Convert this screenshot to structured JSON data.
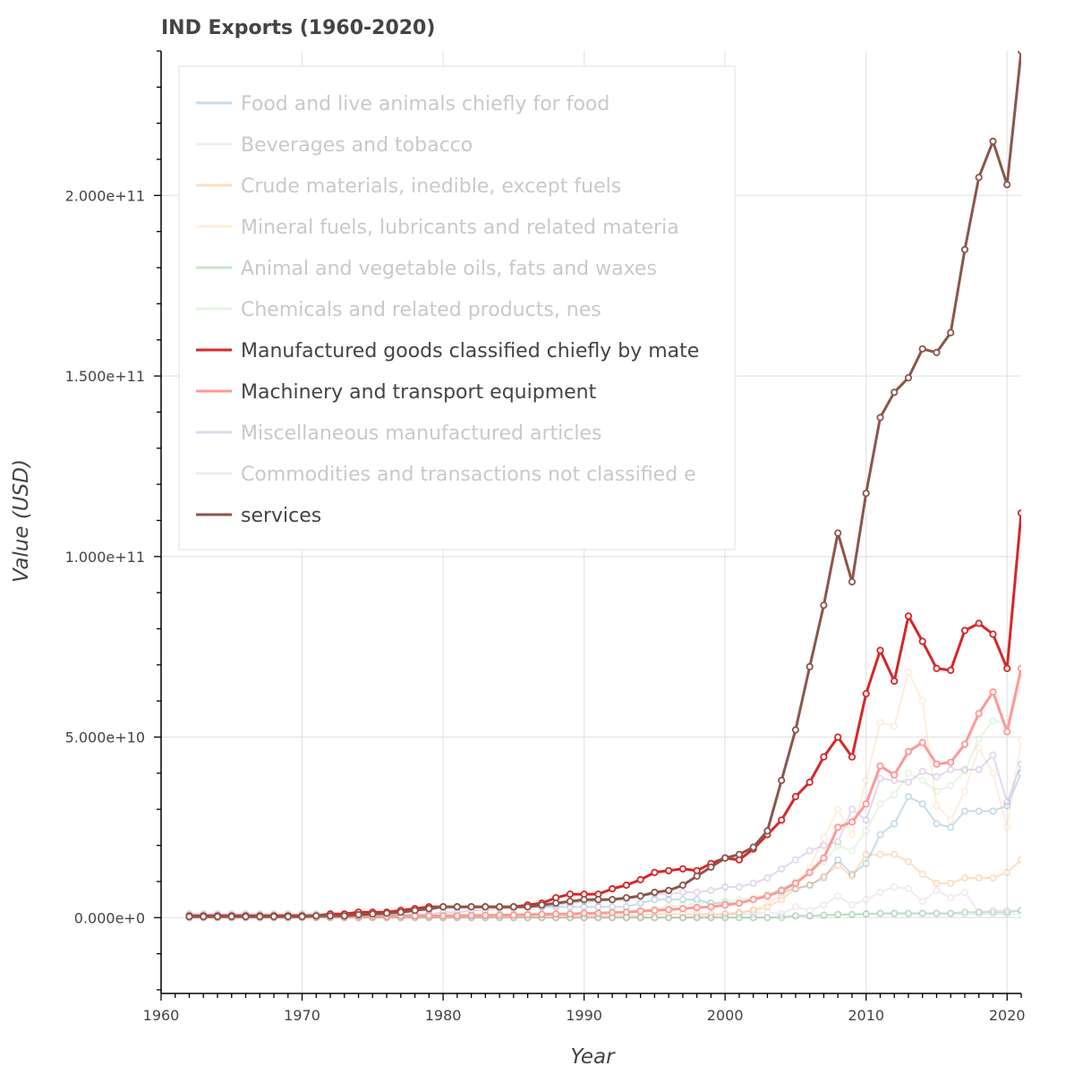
{
  "chart_data": {
    "type": "line",
    "title": "IND Exports (1960-2020)",
    "xlabel": "Year",
    "ylabel": "Value (USD)",
    "xlim": [
      1960,
      2021
    ],
    "ylim": [
      -21000000000,
      240000000000
    ],
    "x_ticks": [
      1960,
      1970,
      1980,
      1990,
      2000,
      2010,
      2020
    ],
    "x_tick_labels": [
      "1960",
      "1970",
      "1980",
      "1990",
      "2000",
      "2010",
      "2020"
    ],
    "y_ticks": [
      0,
      50000000000,
      100000000000,
      150000000000,
      200000000000
    ],
    "y_tick_labels": [
      "0.000e+0",
      "5.000e+10",
      "1.000e+11",
      "1.500e+11",
      "2.000e+11"
    ],
    "grid": true,
    "legend_position": "top-left",
    "x": [
      1962,
      1963,
      1964,
      1965,
      1966,
      1967,
      1968,
      1969,
      1970,
      1971,
      1972,
      1973,
      1974,
      1975,
      1976,
      1977,
      1978,
      1979,
      1980,
      1981,
      1982,
      1983,
      1984,
      1985,
      1986,
      1987,
      1988,
      1989,
      1990,
      1991,
      1992,
      1993,
      1994,
      1995,
      1996,
      1997,
      1998,
      1999,
      2000,
      2001,
      2002,
      2003,
      2004,
      2005,
      2006,
      2007,
      2008,
      2009,
      2010,
      2011,
      2012,
      2013,
      2014,
      2015,
      2016,
      2017,
      2018,
      2019,
      2020,
      2021
    ],
    "series": [
      {
        "name": "Food and live animals chiefly for food",
        "color": "#1f77b4",
        "muted": true,
        "values": [
          0.1,
          0.1,
          0.1,
          0.1,
          0.1,
          0.1,
          0.1,
          0.1,
          0.1,
          0.1,
          0.1,
          0.1,
          0.1,
          0.1,
          0.1,
          0.1,
          0.2,
          0.2,
          0.3,
          0.3,
          0.3,
          0.3,
          0.3,
          0.3,
          0.3,
          0.3,
          0.3,
          0.3,
          0.3,
          0.3,
          0.3,
          0.3,
          0.4,
          0.5,
          0.5,
          0.5,
          0.5,
          0.4,
          0.4,
          0.4,
          0.5,
          0.6,
          0.7,
          0.8,
          0.9,
          1.1,
          1.6,
          1.2,
          1.5,
          2.3,
          2.6,
          3.35,
          3.15,
          2.6,
          2.5,
          2.95,
          2.95,
          2.95,
          3.1,
          4.0
        ]
      },
      {
        "name": "Beverages and tobacco",
        "color": "#aec7e8",
        "muted": true,
        "values": [
          0,
          0,
          0,
          0,
          0,
          0,
          0,
          0,
          0,
          0,
          0,
          0,
          0,
          0,
          0,
          0,
          0,
          0,
          0,
          0,
          0,
          0,
          0,
          0,
          0,
          0,
          0,
          0,
          0,
          0,
          0,
          0,
          0,
          0,
          0,
          0,
          0,
          0,
          0,
          0,
          0,
          0,
          0.05,
          0.05,
          0.05,
          0.05,
          0.1,
          0.1,
          0.1,
          0.1,
          0.1,
          0.1,
          0.1,
          0.1,
          0.1,
          0.1,
          0.1,
          0.1,
          0.1,
          0.1
        ]
      },
      {
        "name": "Crude materials, inedible, except fuels",
        "color": "#ff7f0e",
        "muted": true,
        "values": [
          0.05,
          0.05,
          0.05,
          0.05,
          0.05,
          0.05,
          0.05,
          0.05,
          0.05,
          0.05,
          0.05,
          0.05,
          0.05,
          0.05,
          0.05,
          0.05,
          0.05,
          0.05,
          0.05,
          0.05,
          0.05,
          0.05,
          0.05,
          0.05,
          0.05,
          0.05,
          0.05,
          0.05,
          0.05,
          0.05,
          0.05,
          0.05,
          0.05,
          0.1,
          0.1,
          0.1,
          0.1,
          0.1,
          0.1,
          0.15,
          0.2,
          0.3,
          0.5,
          0.8,
          0.9,
          1.15,
          1.45,
          1.15,
          1.75,
          1.75,
          1.75,
          1.55,
          1.2,
          0.95,
          0.95,
          1.1,
          1.1,
          1.1,
          1.25,
          1.6
        ]
      },
      {
        "name": "Mineral fuels, lubricants and related materia",
        "color": "#ffbb78",
        "muted": true,
        "values": [
          0,
          0,
          0,
          0,
          0,
          0,
          0,
          0,
          0,
          0,
          0,
          0,
          0,
          0,
          0,
          0,
          0,
          0,
          0,
          0,
          0,
          0,
          0,
          0,
          0,
          0,
          0,
          0,
          0,
          0,
          0,
          0,
          0,
          0,
          0,
          0,
          0,
          0,
          0.05,
          0.1,
          0.2,
          0.4,
          0.6,
          0.9,
          1.4,
          2.2,
          3.0,
          2.3,
          3.8,
          5.4,
          5.3,
          6.8,
          6.0,
          3.1,
          2.7,
          3.5,
          4.7,
          4.0,
          2.5,
          4.9
        ]
      },
      {
        "name": "Animal and vegetable oils, fats and waxes",
        "color": "#2ca02c",
        "muted": true,
        "values": [
          0,
          0,
          0,
          0,
          0,
          0,
          0,
          0,
          0,
          0,
          0,
          0,
          0,
          0,
          0,
          0,
          0,
          0,
          0,
          0,
          0,
          0,
          0,
          0,
          0,
          0,
          0,
          0,
          0,
          0,
          0,
          0,
          0,
          0,
          0,
          0,
          0,
          0,
          0,
          0,
          0,
          0,
          0,
          0.05,
          0.05,
          0.07,
          0.08,
          0.08,
          0.1,
          0.12,
          0.12,
          0.12,
          0.12,
          0.12,
          0.12,
          0.15,
          0.15,
          0.15,
          0.15,
          0.2
        ]
      },
      {
        "name": "Chemicals and related products, nes",
        "color": "#98df8a",
        "muted": true,
        "values": [
          0.05,
          0.05,
          0.05,
          0.05,
          0.05,
          0.05,
          0.05,
          0.05,
          0.05,
          0.05,
          0.05,
          0.05,
          0.05,
          0.05,
          0.05,
          0.05,
          0.05,
          0.05,
          0.1,
          0.1,
          0.1,
          0.1,
          0.1,
          0.1,
          0.1,
          0.1,
          0.1,
          0.1,
          0.1,
          0.1,
          0.15,
          0.15,
          0.2,
          0.25,
          0.3,
          0.35,
          0.4,
          0.4,
          0.45,
          0.5,
          0.55,
          0.65,
          0.8,
          1.0,
          1.25,
          1.55,
          2.0,
          1.85,
          2.4,
          3.15,
          3.4,
          4.0,
          3.8,
          3.5,
          3.65,
          4.05,
          4.95,
          5.45,
          5.4,
          6.45
        ]
      },
      {
        "name": "Manufactured goods classified chiefly by mate",
        "color": "#d62728",
        "muted": false,
        "values": [
          0.05,
          0.05,
          0.05,
          0.05,
          0.05,
          0.05,
          0.05,
          0.05,
          0.05,
          0.05,
          0.1,
          0.1,
          0.15,
          0.15,
          0.15,
          0.2,
          0.25,
          0.3,
          0.3,
          0.3,
          0.3,
          0.3,
          0.3,
          0.3,
          0.35,
          0.4,
          0.55,
          0.65,
          0.65,
          0.65,
          0.8,
          0.9,
          1.05,
          1.25,
          1.3,
          1.35,
          1.3,
          1.5,
          1.65,
          1.6,
          1.9,
          2.3,
          2.7,
          3.35,
          3.75,
          4.45,
          5.0,
          4.45,
          6.2,
          7.4,
          6.55,
          8.35,
          7.65,
          6.9,
          6.85,
          7.95,
          8.15,
          7.85,
          6.9,
          11.2
        ]
      },
      {
        "name": "Machinery and transport equipment",
        "color": "#ff9896",
        "muted": false,
        "values": [
          0.02,
          0.02,
          0.02,
          0.02,
          0.02,
          0.02,
          0.02,
          0.02,
          0.02,
          0.02,
          0.03,
          0.03,
          0.03,
          0.04,
          0.04,
          0.05,
          0.05,
          0.05,
          0.05,
          0.05,
          0.06,
          0.06,
          0.07,
          0.07,
          0.08,
          0.09,
          0.1,
          0.1,
          0.12,
          0.12,
          0.14,
          0.15,
          0.18,
          0.2,
          0.22,
          0.25,
          0.28,
          0.3,
          0.35,
          0.4,
          0.5,
          0.6,
          0.75,
          0.95,
          1.25,
          1.65,
          2.5,
          2.65,
          3.15,
          4.2,
          3.95,
          4.6,
          4.85,
          4.25,
          4.3,
          4.8,
          5.65,
          6.25,
          5.15,
          6.9
        ]
      },
      {
        "name": "Miscellaneous manufactured articles",
        "color": "#9467bd",
        "muted": true,
        "values": [
          0.05,
          0.05,
          0.05,
          0.05,
          0.05,
          0.05,
          0.05,
          0.05,
          0.05,
          0.05,
          0.05,
          0.05,
          0.05,
          0.05,
          0.05,
          0.05,
          0.1,
          0.1,
          0.15,
          0.15,
          0.2,
          0.2,
          0.25,
          0.25,
          0.3,
          0.3,
          0.35,
          0.4,
          0.45,
          0.45,
          0.5,
          0.5,
          0.6,
          0.65,
          0.65,
          0.7,
          0.7,
          0.75,
          0.85,
          0.85,
          0.95,
          1.1,
          1.35,
          1.6,
          1.85,
          2.0,
          2.1,
          3.0,
          2.7,
          3.85,
          3.8,
          3.75,
          4.05,
          3.9,
          4.1,
          4.1,
          4.1,
          4.5,
          3.2,
          4.25
        ]
      },
      {
        "name": "Commodities and transactions not classified e",
        "color": "#c5b0d5",
        "muted": true,
        "values": [
          0,
          0,
          0,
          0,
          0,
          0,
          0,
          0,
          0,
          0,
          0,
          0,
          0,
          0,
          0,
          0,
          0,
          0,
          0,
          0,
          0,
          0,
          0,
          0,
          0,
          0,
          0,
          0,
          0,
          0,
          0,
          0,
          0,
          0,
          0,
          0,
          0.05,
          0.05,
          0.1,
          0.1,
          0.1,
          0.15,
          0.1,
          0.3,
          0.2,
          0.35,
          0.6,
          0.35,
          0.5,
          0.7,
          0.85,
          0.8,
          0.45,
          0.75,
          0.55,
          0.7,
          0.15,
          0.2,
          0.2,
          0.2
        ]
      },
      {
        "name": "services",
        "color": "#8c564b",
        "muted": false,
        "values": [
          0.03,
          0.03,
          0.03,
          0.03,
          0.03,
          0.03,
          0.03,
          0.03,
          0.03,
          0.05,
          0.05,
          0.05,
          0.08,
          0.1,
          0.12,
          0.15,
          0.2,
          0.25,
          0.3,
          0.3,
          0.3,
          0.3,
          0.3,
          0.3,
          0.3,
          0.35,
          0.4,
          0.45,
          0.5,
          0.5,
          0.5,
          0.55,
          0.6,
          0.7,
          0.75,
          0.9,
          1.15,
          1.4,
          1.65,
          1.75,
          1.95,
          2.4,
          3.8,
          5.2,
          6.95,
          8.65,
          10.65,
          9.3,
          11.75,
          13.85,
          14.55,
          14.95,
          15.75,
          15.65,
          16.2,
          18.5,
          20.5,
          21.5,
          20.3,
          24.0
        ]
      }
    ]
  }
}
